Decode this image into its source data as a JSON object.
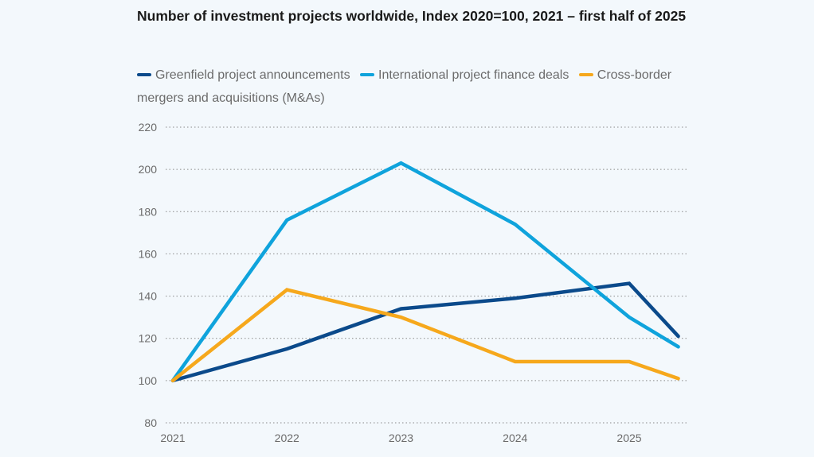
{
  "chart_data": {
    "type": "line",
    "title": "Number of investment projects worldwide, Index 2020=100, 2021 – first half of 2025",
    "xlabel": "",
    "ylabel": "",
    "x": [
      2021,
      2022,
      2023,
      2024,
      2025,
      2025.43
    ],
    "x_ticks": [
      "2021",
      "2022",
      "2023",
      "2024",
      "2025"
    ],
    "y_ticks": [
      "80",
      "100",
      "120",
      "140",
      "160",
      "180",
      "200",
      "220"
    ],
    "ylim": [
      80,
      220
    ],
    "grid": "horizontal dotted",
    "legend_position": "top",
    "series": [
      {
        "name": "Greenfield project announcements",
        "color": "#0b4a8b",
        "values": [
          100,
          115,
          134,
          139,
          146,
          121
        ]
      },
      {
        "name": "International project finance deals",
        "color": "#0fa3dc",
        "values": [
          100,
          176,
          203,
          174,
          130,
          116
        ]
      },
      {
        "name": "Cross-border mergers and acquisitions (M&As)",
        "color": "#f6a81c",
        "values": [
          100,
          143,
          130,
          109,
          109,
          101
        ]
      }
    ]
  }
}
